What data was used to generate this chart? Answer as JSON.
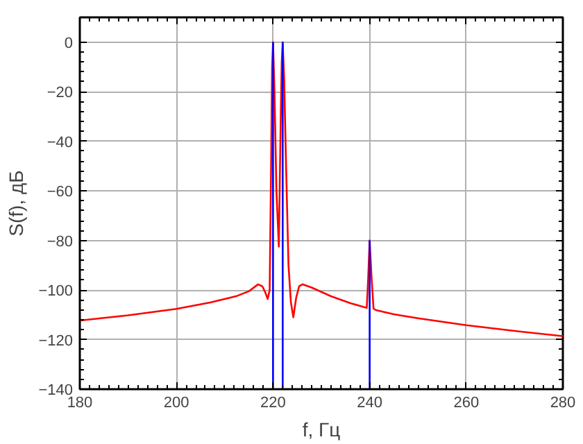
{
  "chart_data": {
    "type": "line",
    "xlabel": "f, Гц",
    "ylabel": "S(f), дБ",
    "xlim": [
      180,
      280
    ],
    "xticks": [
      180,
      200,
      220,
      240,
      260,
      280
    ],
    "ylim": [
      -140,
      10
    ],
    "yticks": [
      -140,
      -120,
      -100,
      -80,
      -60,
      -40,
      -20,
      0
    ],
    "grid": true,
    "series": [
      {
        "color": "#0000ff",
        "x": [
          220,
          220,
          221,
          222,
          222,
          231,
          240,
          240
        ],
        "values": [
          -140,
          0,
          null,
          -140,
          0,
          null,
          -140,
          -80
        ]
      },
      {
        "color": "#ff0000",
        "x": [
          180,
          190,
          200,
          207,
          212.5,
          215,
          216.9,
          217.8,
          218.4,
          218.9,
          219.3,
          219.6,
          219.8,
          220,
          220.3,
          220.7,
          221.2,
          221.6,
          221.8,
          222,
          222.3,
          222.7,
          223.2,
          223.7,
          224.2,
          224.8,
          225.4,
          226.1,
          228,
          232,
          236,
          239.4,
          239.7,
          240,
          240.4,
          240.8,
          241.3,
          245,
          250,
          260,
          270,
          280
        ],
        "values": [
          -112.3,
          -110.2,
          -107.6,
          -105,
          -102.4,
          -100.5,
          -97.7,
          -98.5,
          -101,
          -103.6,
          -100,
          -50,
          -10,
          0,
          -20,
          -60,
          -82.5,
          -30,
          -8,
          0,
          -15,
          -50,
          -90,
          -105,
          -111,
          -103,
          -98.5,
          -97.7,
          -99,
          -102.5,
          -105.3,
          -107.2,
          -95,
          -80,
          -95,
          -107.5,
          -108.1,
          -109.8,
          -111.4,
          -114.2,
          -116.5,
          -118.6
        ]
      }
    ]
  }
}
